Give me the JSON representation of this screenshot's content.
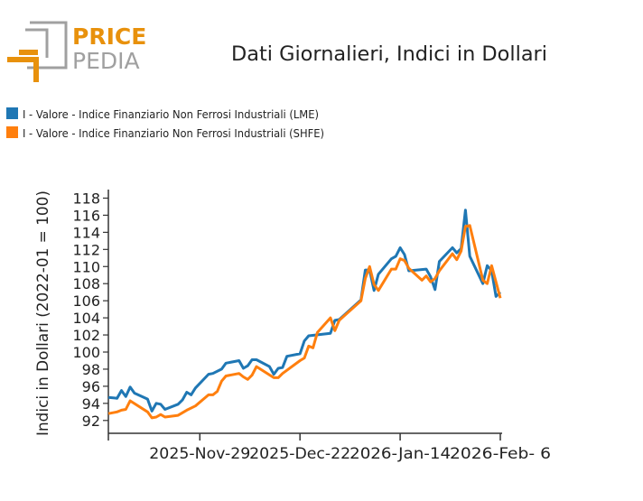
{
  "logo": {
    "text_top": "PRICE",
    "text_bottom": "PEDIA"
  },
  "colors": {
    "lme": "#1f77b4",
    "shfe": "#ff7f0e",
    "logo_orange": "#e8910c",
    "logo_gray": "#a0a0a0"
  },
  "chart_data": {
    "type": "line",
    "title": "Dati Giornalieri, Indici in Dollari",
    "ylabel": "Indici in Dollari (2022-01 = 100)",
    "xlabel": "",
    "xlim": [
      "2025-11-08",
      "2026-02-06"
    ],
    "ylim": [
      90.5,
      119
    ],
    "yticks": [
      92,
      94,
      96,
      98,
      100,
      102,
      104,
      106,
      108,
      110,
      112,
      114,
      116,
      118
    ],
    "xticks": [
      {
        "date": "2025-11-08",
        "label": ""
      },
      {
        "date": "2025-11-29",
        "label": "2025-Nov-29"
      },
      {
        "date": "2025-12-22",
        "label": "2025-Dec-22"
      },
      {
        "date": "2026-01-14",
        "label": "2026-Jan-14"
      },
      {
        "date": "2026-02-06",
        "label": "2026-Feb- 6"
      }
    ],
    "grid": false,
    "legend_position": "top-left",
    "series": [
      {
        "name": "I - Valore - Indice Finanziario Non Ferrosi Industriali (LME)",
        "color": "#1f77b4",
        "points": [
          [
            "2025-11-08",
            94.7
          ],
          [
            "2025-11-10",
            94.6
          ],
          [
            "2025-11-11",
            95.5
          ],
          [
            "2025-11-12",
            94.8
          ],
          [
            "2025-11-13",
            95.9
          ],
          [
            "2025-11-14",
            95.2
          ],
          [
            "2025-11-17",
            94.5
          ],
          [
            "2025-11-18",
            93.1
          ],
          [
            "2025-11-19",
            94.0
          ],
          [
            "2025-11-20",
            93.9
          ],
          [
            "2025-11-21",
            93.3
          ],
          [
            "2025-11-24",
            93.9
          ],
          [
            "2025-11-25",
            94.4
          ],
          [
            "2025-11-26",
            95.3
          ],
          [
            "2025-11-27",
            95.0
          ],
          [
            "2025-11-28",
            95.8
          ],
          [
            "2025-12-01",
            97.4
          ],
          [
            "2025-12-02",
            97.5
          ],
          [
            "2025-12-04",
            98.0
          ],
          [
            "2025-12-05",
            98.7
          ],
          [
            "2025-12-08",
            99.0
          ],
          [
            "2025-12-09",
            98.1
          ],
          [
            "2025-12-10",
            98.4
          ],
          [
            "2025-12-11",
            99.1
          ],
          [
            "2025-12-12",
            99.1
          ],
          [
            "2025-12-15",
            98.3
          ],
          [
            "2025-12-16",
            97.4
          ],
          [
            "2025-12-17",
            98.1
          ],
          [
            "2025-12-18",
            98.2
          ],
          [
            "2025-12-19",
            99.5
          ],
          [
            "2025-12-22",
            99.8
          ],
          [
            "2025-12-23",
            101.3
          ],
          [
            "2025-12-24",
            101.9
          ],
          [
            "2025-12-29",
            102.2
          ],
          [
            "2025-12-30",
            103.7
          ],
          [
            "2025-12-31",
            103.8
          ],
          [
            "2026-01-05",
            106.1
          ],
          [
            "2026-01-06",
            109.6
          ],
          [
            "2026-01-07",
            109.6
          ],
          [
            "2026-01-08",
            107.2
          ],
          [
            "2026-01-09",
            109.1
          ],
          [
            "2026-01-12",
            110.9
          ],
          [
            "2026-01-13",
            111.2
          ],
          [
            "2026-01-14",
            112.2
          ],
          [
            "2026-01-15",
            111.4
          ],
          [
            "2026-01-16",
            109.5
          ],
          [
            "2026-01-20",
            109.7
          ],
          [
            "2026-01-21",
            108.8
          ],
          [
            "2026-01-22",
            107.3
          ],
          [
            "2026-01-23",
            110.6
          ],
          [
            "2026-01-26",
            112.2
          ],
          [
            "2026-01-27",
            111.6
          ],
          [
            "2026-01-28",
            112.1
          ],
          [
            "2026-01-29",
            116.6
          ],
          [
            "2026-01-30",
            111.2
          ],
          [
            "2026-02-02",
            108.0
          ],
          [
            "2026-02-03",
            110.1
          ],
          [
            "2026-02-04",
            109.5
          ],
          [
            "2026-02-05",
            106.5
          ],
          [
            "2026-02-06",
            107.0
          ]
        ]
      },
      {
        "name": "I - Valore - Indice Finanziario Non Ferrosi Industriali (SHFE)",
        "color": "#ff7f0e",
        "points": [
          [
            "2025-11-08",
            92.8
          ],
          [
            "2025-11-10",
            93.0
          ],
          [
            "2025-11-11",
            93.2
          ],
          [
            "2025-11-12",
            93.3
          ],
          [
            "2025-11-13",
            94.3
          ],
          [
            "2025-11-17",
            93.0
          ],
          [
            "2025-11-18",
            92.3
          ],
          [
            "2025-11-19",
            92.4
          ],
          [
            "2025-11-20",
            92.7
          ],
          [
            "2025-11-21",
            92.4
          ],
          [
            "2025-11-24",
            92.6
          ],
          [
            "2025-11-26",
            93.2
          ],
          [
            "2025-11-28",
            93.7
          ],
          [
            "2025-12-01",
            95.0
          ],
          [
            "2025-12-02",
            95.0
          ],
          [
            "2025-12-03",
            95.4
          ],
          [
            "2025-12-04",
            96.6
          ],
          [
            "2025-12-05",
            97.2
          ],
          [
            "2025-12-08",
            97.5
          ],
          [
            "2025-12-09",
            97.1
          ],
          [
            "2025-12-10",
            96.8
          ],
          [
            "2025-12-11",
            97.3
          ],
          [
            "2025-12-12",
            98.3
          ],
          [
            "2025-12-16",
            97.0
          ],
          [
            "2025-12-17",
            97.0
          ],
          [
            "2025-12-18",
            97.5
          ],
          [
            "2025-12-22",
            99.0
          ],
          [
            "2025-12-23",
            99.3
          ],
          [
            "2025-12-24",
            100.7
          ],
          [
            "2025-12-25",
            100.5
          ],
          [
            "2025-12-26",
            102.3
          ],
          [
            "2025-12-29",
            104.0
          ],
          [
            "2025-12-30",
            102.5
          ],
          [
            "2025-12-31",
            103.7
          ],
          [
            "2026-01-05",
            106.0
          ],
          [
            "2026-01-06",
            108.6
          ],
          [
            "2026-01-07",
            110.0
          ],
          [
            "2026-01-08",
            107.9
          ],
          [
            "2026-01-09",
            107.2
          ],
          [
            "2026-01-12",
            109.7
          ],
          [
            "2026-01-13",
            109.7
          ],
          [
            "2026-01-14",
            110.9
          ],
          [
            "2026-01-15",
            110.7
          ],
          [
            "2026-01-16",
            109.8
          ],
          [
            "2026-01-19",
            108.4
          ],
          [
            "2026-01-20",
            108.9
          ],
          [
            "2026-01-21",
            108.2
          ],
          [
            "2026-01-22",
            108.6
          ],
          [
            "2026-01-23",
            109.5
          ],
          [
            "2026-01-26",
            111.5
          ],
          [
            "2026-01-27",
            110.8
          ],
          [
            "2026-01-28",
            111.8
          ],
          [
            "2026-01-29",
            114.7
          ],
          [
            "2026-01-30",
            114.8
          ],
          [
            "2026-02-02",
            108.4
          ],
          [
            "2026-02-03",
            108.0
          ],
          [
            "2026-02-04",
            110.1
          ],
          [
            "2026-02-06",
            106.3
          ]
        ]
      }
    ]
  }
}
